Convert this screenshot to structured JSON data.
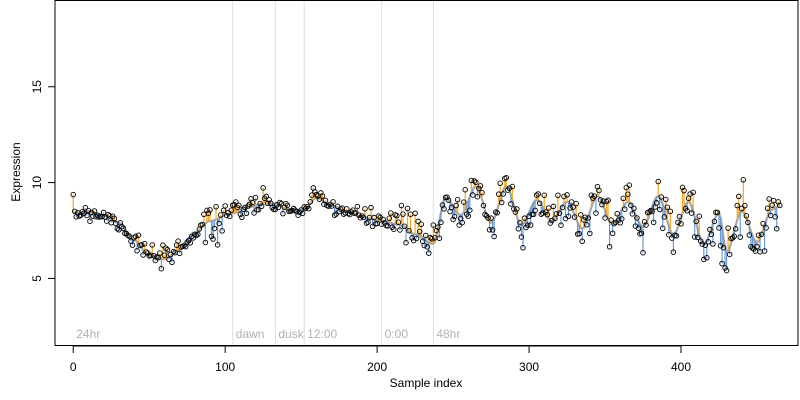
{
  "chart_data": {
    "type": "scatter",
    "title": "",
    "xlabel": "Sample index",
    "ylabel": "Expression",
    "xlim": [
      -12,
      477
    ],
    "ylim": [
      1.5,
      19.5
    ],
    "x_ticks": [
      0,
      100,
      200,
      300,
      400
    ],
    "y_ticks": [
      5,
      10,
      15
    ],
    "grid": false,
    "colors": {
      "fitted_line": "#a8a8a8",
      "residual_above": "#f5a623",
      "residual_below": "#6a9bd8",
      "separator": "#dddddd",
      "point_edge": "#000000",
      "annotation_text": "#b0b0b0"
    },
    "segments": [
      {
        "label": "24hr",
        "x_start": 0,
        "x_end": 105
      },
      {
        "label": "dawn",
        "x_start": 105,
        "x_end": 133
      },
      {
        "label": "dusk",
        "x_start": 133,
        "x_end": 152
      },
      {
        "label": "12:00",
        "x_start": 152,
        "x_end": 203
      },
      {
        "label": "0:00",
        "x_start": 203,
        "x_end": 237
      },
      {
        "label": "48hr",
        "x_start": 237,
        "x_end": 465
      }
    ],
    "separators_x": [
      105,
      133,
      152,
      203,
      237
    ],
    "anchors": [
      [
        0,
        8.4
      ],
      [
        10,
        8.5
      ],
      [
        20,
        8.3
      ],
      [
        30,
        7.9
      ],
      [
        40,
        7.0
      ],
      [
        50,
        6.2
      ],
      [
        60,
        6.0
      ],
      [
        70,
        6.5
      ],
      [
        80,
        7.4
      ],
      [
        90,
        8.0
      ],
      [
        105,
        8.4
      ],
      [
        115,
        8.7
      ],
      [
        125,
        8.9
      ],
      [
        133,
        8.9
      ],
      [
        143,
        8.5
      ],
      [
        152,
        8.6
      ],
      [
        160,
        9.2
      ],
      [
        170,
        8.8
      ],
      [
        180,
        8.5
      ],
      [
        190,
        8.2
      ],
      [
        203,
        8.0
      ],
      [
        215,
        7.8
      ],
      [
        225,
        7.3
      ],
      [
        237,
        6.8
      ],
      [
        245,
        9.2
      ],
      [
        255,
        8.3
      ],
      [
        265,
        9.8
      ],
      [
        275,
        7.9
      ],
      [
        285,
        9.8
      ],
      [
        295,
        7.8
      ],
      [
        305,
        9.1
      ],
      [
        315,
        8.0
      ],
      [
        325,
        9.0
      ],
      [
        335,
        7.6
      ],
      [
        345,
        9.3
      ],
      [
        355,
        7.8
      ],
      [
        365,
        9.0
      ],
      [
        375,
        7.7
      ],
      [
        385,
        9.3
      ],
      [
        395,
        7.3
      ],
      [
        405,
        9.0
      ],
      [
        415,
        6.8
      ],
      [
        425,
        8.4
      ],
      [
        430,
        6.4
      ],
      [
        440,
        8.5
      ],
      [
        450,
        6.9
      ],
      [
        460,
        8.6
      ],
      [
        465,
        8.8
      ]
    ],
    "noise_seed": 7,
    "n_points": 466
  }
}
